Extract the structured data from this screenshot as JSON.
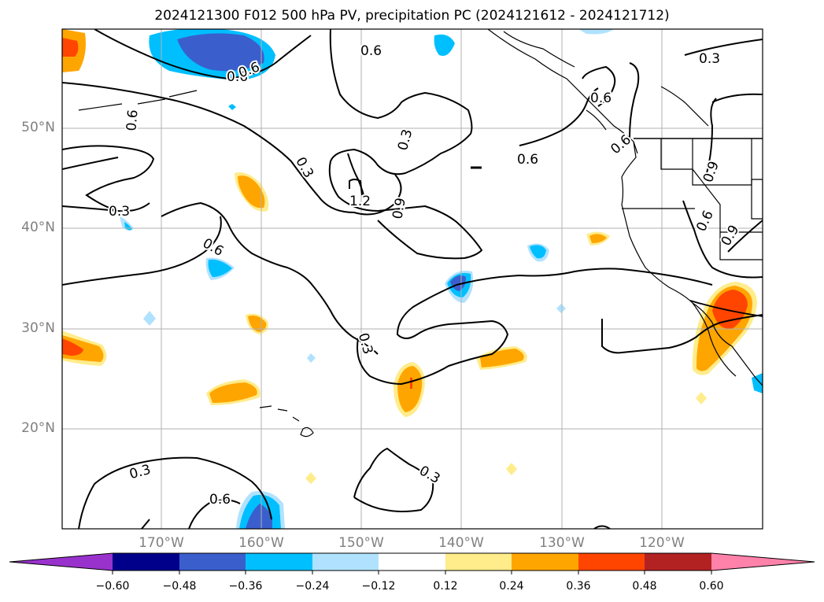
{
  "title": "2024121300 F012 500 hPa PV, precipitation PC (2024121612 - 2024121712)",
  "lat_labels": [
    "50°N",
    "40°N",
    "30°N",
    "20°N"
  ],
  "lon_labels": [
    "170°W",
    "160°W",
    "150°W",
    "140°W",
    "130°W",
    "120°W"
  ],
  "contour_labels": [
    "0.6",
    "0.3",
    "0.6",
    "0.3",
    "0.3",
    "1.2",
    "0.9",
    "0.6",
    "0.6",
    "0.6",
    "0.3",
    "0.6",
    "0.3",
    "0.9",
    "0.6",
    "0.9",
    "0.3",
    "0.6",
    "0.3",
    "0.6",
    "0.6"
  ],
  "colorbar": {
    "ticks": [
      "−0.60",
      "−0.48",
      "−0.36",
      "−0.24",
      "−0.12",
      "0.12",
      "0.24",
      "0.36",
      "0.48",
      "0.60"
    ],
    "colors": [
      "#9932cc",
      "#00008b",
      "#3a5fcd",
      "#00bfff",
      "#b0e2ff",
      "#ffffff",
      "#ffec8b",
      "#ffa500",
      "#ff4500",
      "#b22222",
      "#ff82ab"
    ]
  }
}
